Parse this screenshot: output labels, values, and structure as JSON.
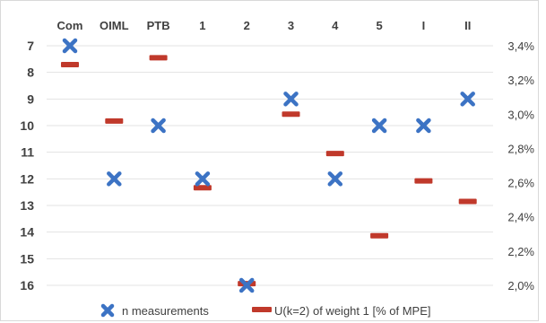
{
  "chart_data": {
    "type": "scatter",
    "categories": [
      "Com",
      "OIML",
      "PTB",
      "1",
      "2",
      "3",
      "4",
      "5",
      "I",
      "II"
    ],
    "y_left": {
      "ticks": [
        "7",
        "8",
        "9",
        "10",
        "11",
        "12",
        "13",
        "14",
        "15",
        "16"
      ],
      "range": [
        7,
        16
      ],
      "inverted": true
    },
    "y_right": {
      "ticks": [
        "3,4%",
        "3,2%",
        "3,0%",
        "2,8%",
        "2,6%",
        "2,4%",
        "2,2%",
        "2,0%"
      ],
      "range": [
        2.0,
        3.4
      ],
      "unit": "%"
    },
    "series": [
      {
        "name": "n measurements",
        "axis": "left",
        "marker": "x",
        "color": "#3c73c4",
        "values": [
          7,
          12,
          10,
          12,
          16,
          9,
          12,
          10,
          10,
          9
        ]
      },
      {
        "name": "U(k=2) of weight 1 [% of MPE]",
        "axis": "right",
        "marker": "dash",
        "color": "#c0392b",
        "values": [
          3.29,
          2.96,
          3.33,
          2.57,
          2.01,
          3.0,
          2.77,
          2.29,
          2.61,
          2.49
        ]
      }
    ],
    "legend_position": "bottom",
    "grid": "horizontal"
  }
}
